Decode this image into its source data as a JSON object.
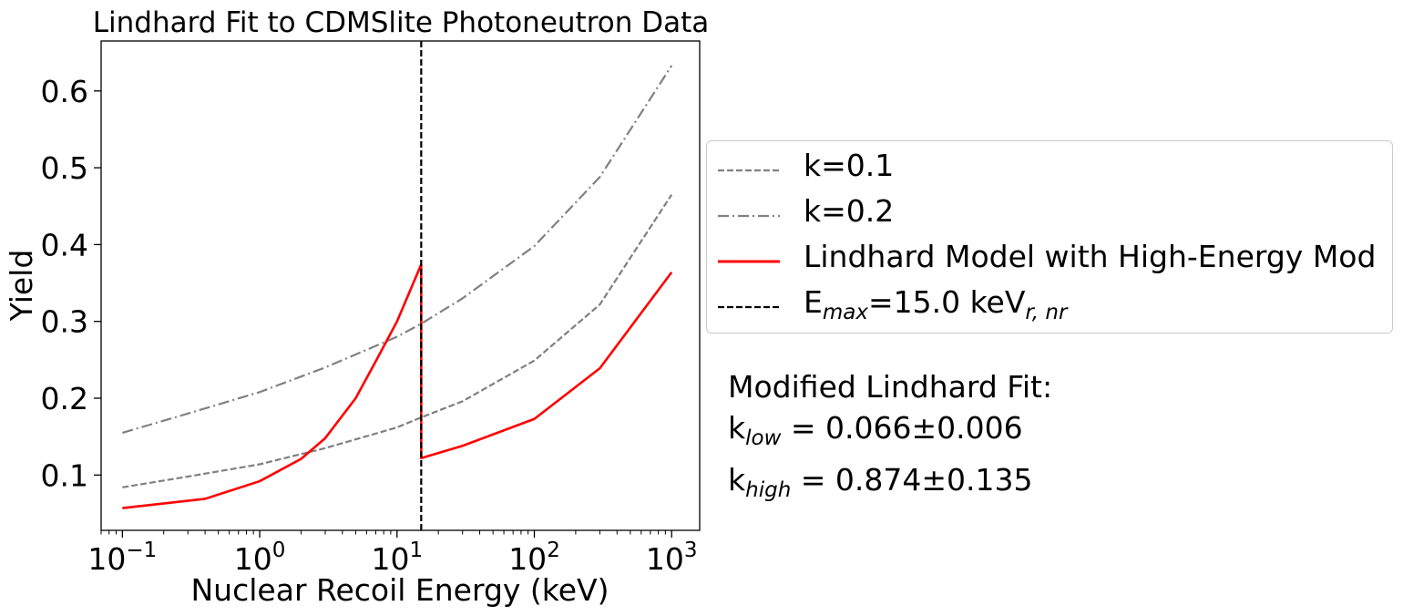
{
  "chart_data": {
    "type": "line",
    "title": "Lindhard Fit to CDMSlite Photoneutron Data",
    "xlabel": "Nuclear Recoil Energy (keV)",
    "ylabel": "Yield",
    "xscale": "log",
    "xlim": [
      0.07,
      1600
    ],
    "ylim": [
      0.028,
      0.665
    ],
    "xticks": [
      {
        "value": 0.1,
        "base": "10",
        "exp": "−1"
      },
      {
        "value": 1,
        "base": "10",
        "exp": "0"
      },
      {
        "value": 10,
        "base": "10",
        "exp": "1"
      },
      {
        "value": 100,
        "base": "10",
        "exp": "2"
      },
      {
        "value": 1000,
        "base": "10",
        "exp": "3"
      }
    ],
    "yticks": [
      {
        "value": 0.1,
        "label": "0.1"
      },
      {
        "value": 0.2,
        "label": "0.2"
      },
      {
        "value": 0.3,
        "label": "0.3"
      },
      {
        "value": 0.4,
        "label": "0.4"
      },
      {
        "value": 0.5,
        "label": "0.5"
      },
      {
        "value": 0.6,
        "label": "0.6"
      }
    ],
    "series": [
      {
        "name": "k=0.1",
        "color": "#808080",
        "style": "dashed",
        "x": [
          0.1,
          0.3,
          1,
          3,
          10,
          15,
          30,
          100,
          300,
          1000
        ],
        "y": [
          0.084,
          0.098,
          0.114,
          0.135,
          0.162,
          0.175,
          0.196,
          0.249,
          0.322,
          0.465
        ]
      },
      {
        "name": "k=0.2",
        "color": "#808080",
        "style": "dashdot",
        "x": [
          0.1,
          0.3,
          1,
          3,
          10,
          15,
          30,
          100,
          300,
          1000
        ],
        "y": [
          0.155,
          0.18,
          0.208,
          0.24,
          0.28,
          0.297,
          0.33,
          0.398,
          0.488,
          0.633
        ]
      },
      {
        "name": "Lindhard Model with High-Energy Mod",
        "color": "#ff0000",
        "style": "solid",
        "x": [
          0.1,
          0.4,
          1,
          2,
          3,
          5,
          7,
          10,
          14.99,
          15.01,
          30,
          100,
          300,
          1000
        ],
        "y": [
          0.057,
          0.069,
          0.092,
          0.121,
          0.148,
          0.2,
          0.248,
          0.3,
          0.374,
          0.122,
          0.138,
          0.173,
          0.239,
          0.364
        ]
      }
    ],
    "vline": {
      "x": 15.0,
      "color": "#000000",
      "style": "dashed"
    },
    "legend": {
      "placement": "right-outside",
      "entries": [
        {
          "label": "k=0.1",
          "color": "#808080",
          "style": "dashed"
        },
        {
          "label": "k=0.2",
          "color": "#808080",
          "style": "dashdot"
        },
        {
          "label": "Lindhard Model with High-Energy Mod",
          "color": "#ff0000",
          "style": "solid"
        },
        {
          "label_main": "E",
          "label_sub": "max",
          "label_rest": "=15.0 keV",
          "label_sub2": "r, nr",
          "color": "#000000",
          "style": "dashed"
        }
      ]
    },
    "annotation": {
      "line1": "Modified Lindhard Fit:",
      "line2_main": "k",
      "line2_sub": "low",
      "line2_rest": " = 0.066±0.006",
      "line3_main": "k",
      "line3_sub": "high",
      "line3_rest": " = 0.874±0.135"
    }
  }
}
